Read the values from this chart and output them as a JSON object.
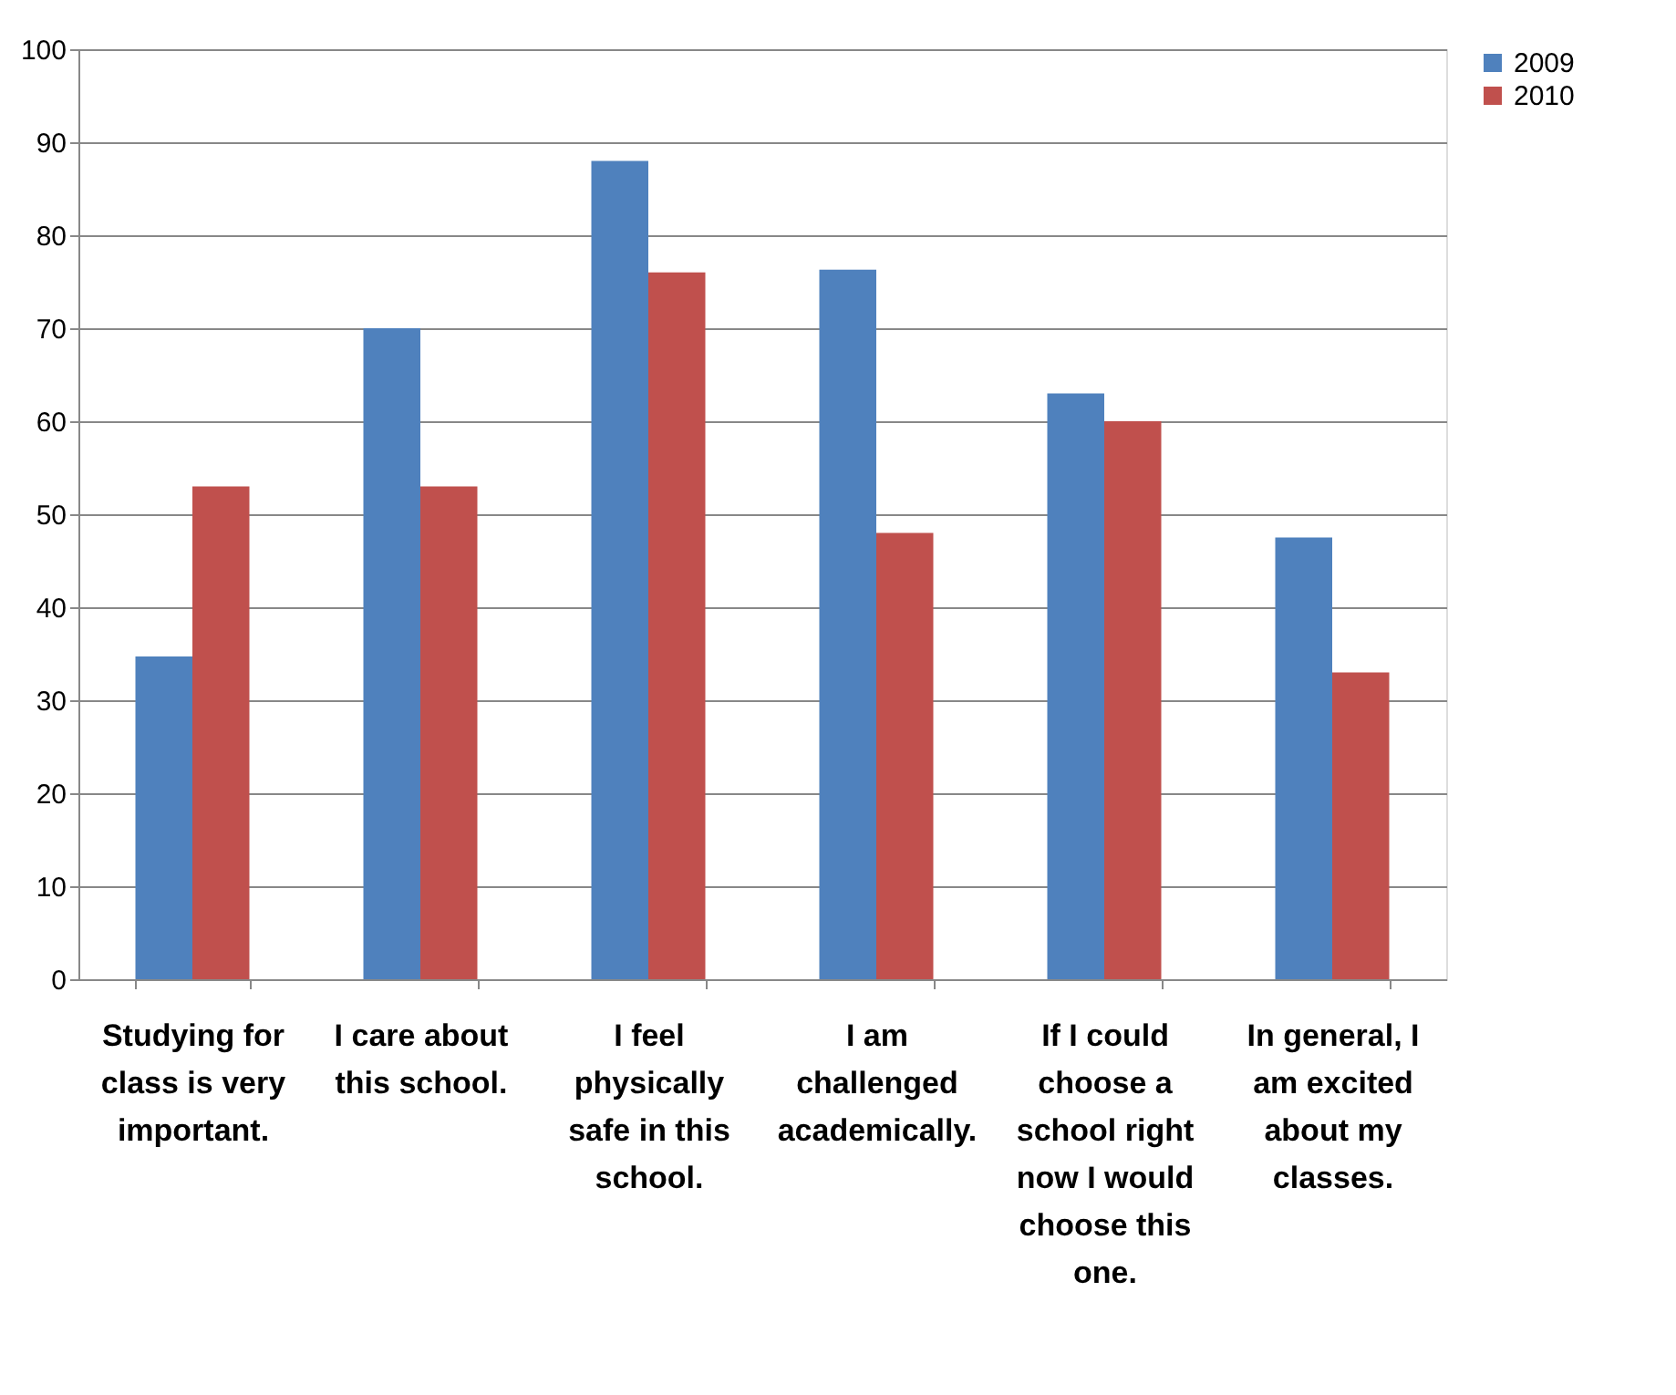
{
  "chart_data": {
    "type": "bar",
    "categories": [
      "Studying for class is very important.",
      "I care about this school.",
      "I feel physically safe in this school.",
      "I am challenged academically.",
      "If I could choose a school right now I would choose this one.",
      "In general, I am excited about my classes."
    ],
    "series": [
      {
        "name": "2009",
        "color": "#4f81bd",
        "values": [
          34.7,
          70,
          88,
          76.3,
          63,
          47.5
        ]
      },
      {
        "name": "2010",
        "color": "#c0504d",
        "values": [
          53,
          53,
          76,
          48,
          60,
          33
        ]
      }
    ],
    "ylim": [
      0,
      100
    ],
    "yticks": [
      0,
      10,
      20,
      30,
      40,
      50,
      60,
      70,
      80,
      90,
      100
    ],
    "grid": "y",
    "legend": "right"
  }
}
